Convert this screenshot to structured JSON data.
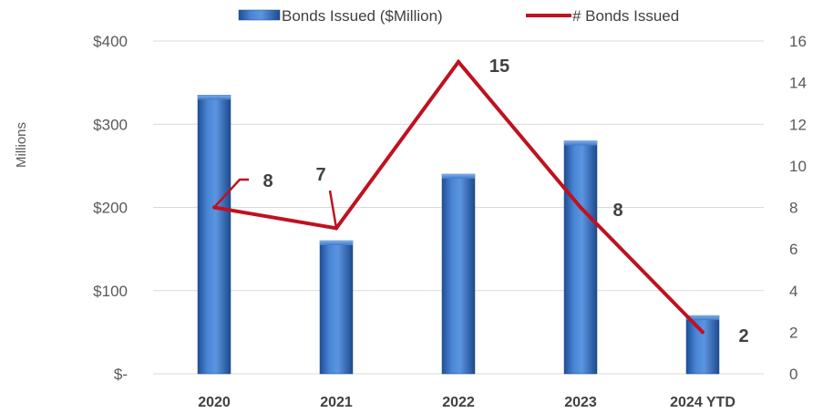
{
  "chart_data": {
    "type": "bar+line",
    "categories": [
      "2020",
      "2021",
      "2022",
      "2023",
      "2024 YTD"
    ],
    "series": [
      {
        "name": "Bonds Issued ($Million)",
        "type": "bar",
        "axis": "left",
        "values": [
          335,
          160,
          240,
          280,
          70
        ],
        "color": "#3a72c4"
      },
      {
        "name": "# Bonds Issued",
        "type": "line",
        "axis": "right",
        "values": [
          8,
          7,
          15,
          8,
          2
        ],
        "data_labels": [
          "8",
          "7",
          "15",
          "8",
          "2"
        ],
        "color": "#c0111f"
      }
    ],
    "left_axis": {
      "title": "Millions",
      "ylim": [
        0,
        400
      ],
      "ticks": [
        0,
        100,
        200,
        300,
        400
      ],
      "tick_labels": [
        "$-",
        "$100",
        "$200",
        "$300",
        "$400"
      ]
    },
    "right_axis": {
      "ylim": [
        0,
        16
      ],
      "ticks": [
        0,
        2,
        4,
        6,
        8,
        10,
        12,
        14,
        16
      ],
      "tick_labels": [
        "0",
        "2",
        "4",
        "6",
        "8",
        "10",
        "12",
        "14",
        "16"
      ]
    },
    "grid": true,
    "legend_position": "top"
  }
}
